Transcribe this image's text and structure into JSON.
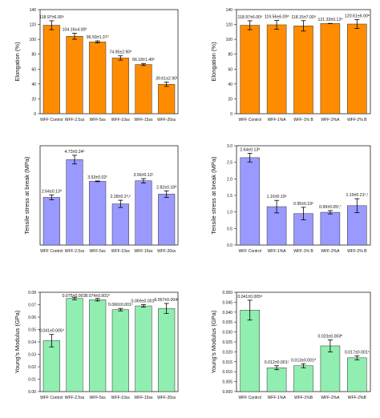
{
  "chart_data": [
    {
      "id": "elong-speed",
      "type": "bar",
      "color": "#FF8C00",
      "categories": [
        "WFF Control",
        "WFF-2.5ss",
        "WFF-5ss",
        "WFF-10ss",
        "WFF-15ss",
        "WFF-20ss"
      ],
      "values": [
        118.97,
        104.16,
        96.59,
        74.95,
        66.18,
        39.61
      ],
      "errors": [
        6.0,
        4.0,
        1.37,
        2.9,
        1.4,
        2.9
      ],
      "labels": [
        "118.97±6.00ᵃ",
        "104.16±4.00ᵇ",
        "96.59±1.37ᶜ",
        "74.95±2.90ᵈ",
        "66.18±1.40ᵉ",
        "39.61±2.90ᶠ"
      ],
      "ylabel": "Elongation (%)",
      "ylim": [
        0,
        140
      ],
      "yticks": [
        0,
        20,
        40,
        60,
        80,
        100,
        120,
        140
      ],
      "ytick_labels": [
        "0",
        "20",
        "40",
        "60",
        "80",
        "100",
        "120",
        "140"
      ]
    },
    {
      "id": "elong-amp",
      "type": "bar",
      "color": "#FF8C00",
      "categories": [
        "WFF Control",
        "WFF-1%A",
        "WFF-1% B",
        "WFF-2%A",
        "WFF-2% B"
      ],
      "values": [
        118.97,
        119.56,
        118.15,
        121.33,
        120.61
      ],
      "errors": [
        6.0,
        6.0,
        7.0,
        0.12,
        6.0
      ],
      "labels": [
        "118.97±6.00ᵃ",
        "119.56±6.00ᵃ",
        "118.15±7.00ᵃ",
        "121.33±0.12ᵃ",
        "120.61±6.00ᵃ"
      ],
      "ylabel": "Elongation (%)",
      "ylim": [
        0,
        140
      ],
      "yticks": [
        0,
        20,
        40,
        60,
        80,
        100,
        120,
        140
      ],
      "ytick_labels": [
        "0",
        "20",
        "40",
        "60",
        "80",
        "100",
        "120",
        "140"
      ]
    },
    {
      "id": "tensile-speed",
      "type": "bar",
      "color": "#9999FF",
      "categories": [
        "WFF Control",
        "WFF-2.5ss",
        "WFF-5ss",
        "WFF-10ss",
        "WFF-15ss",
        "WFF-20ss"
      ],
      "values": [
        2.64,
        4.73,
        3.53,
        2.28,
        3.56,
        2.82
      ],
      "errors": [
        0.13,
        0.24,
        0.02,
        0.2,
        0.12,
        0.18
      ],
      "labels": [
        "2.64±0.13ᵈ",
        "4.73±0.24ᵇ",
        "3.53±0.02ᶜ",
        "2.28±0.2ᵈ,ᵉ",
        "3.56±0.12ᶜ",
        "2.82±0.18ᵈ"
      ],
      "ylabel": "Tensile stress at break (MPa)",
      "ylim": [
        0,
        5.5
      ],
      "yticks": [],
      "ytick_labels": []
    },
    {
      "id": "tensile-amp",
      "type": "bar",
      "color": "#9999FF",
      "categories": [
        "WFF Control",
        "WFF-1%A",
        "WFF-1% B",
        "WFF-2%A",
        "WFF-2% B"
      ],
      "values": [
        2.64,
        1.16,
        0.95,
        0.99,
        1.19
      ],
      "errors": [
        0.13,
        0.19,
        0.19,
        0.05,
        0.21
      ],
      "labels": [
        "2.64±0.13ᵈ",
        "1.16±0.19ᵉ",
        "0.95±0.19ᵉ",
        "0.99±0.05ᵉ,ᶠ",
        "1.19±0.21ᵉ,ᶠ"
      ],
      "ylabel": "Tensile stress at break (MPa)",
      "ylim": [
        0,
        3.0
      ],
      "yticks": [
        0,
        0.5,
        1.0,
        1.5,
        2.0,
        2.5,
        3.0
      ],
      "ytick_labels": [
        "0.0",
        "0.5",
        "1.0",
        "1.5",
        "2.0",
        "2.5",
        "3.0"
      ]
    },
    {
      "id": "young-speed",
      "type": "bar",
      "color": "#90EEB0",
      "categories": [
        "WFF Control",
        "WFF-2.5ss",
        "WFF-5ss",
        "WFF-10ss",
        "WFF-15ss",
        "WFF-20ss"
      ],
      "values": [
        0.041,
        0.075,
        0.074,
        0.066,
        0.069,
        0.067
      ],
      "errors": [
        0.005,
        0.001,
        0.001,
        0.001,
        0.001,
        0.004
      ],
      "labels": [
        "0.041±0.005ᵈ",
        "0.075±0.001ᵇ",
        "0.074±0.001ᵇ",
        "0.066±0.001ᶜ",
        "0.069±0.001ᶜ",
        "0.067±0.004ᶜ"
      ],
      "ylabel": "Young's Modulus (GPa)",
      "ylim": [
        0,
        0.08
      ],
      "yticks": [
        0,
        0.01,
        0.02,
        0.03,
        0.04,
        0.05,
        0.06,
        0.07,
        0.08
      ],
      "ytick_labels": [
        "0.00",
        "0.01",
        "0.02",
        "0.03",
        "0.04",
        "0.05",
        "0.06",
        "0.07",
        "0.08"
      ]
    },
    {
      "id": "young-amp",
      "type": "bar",
      "color": "#90EEB0",
      "categories": [
        "WFF Control",
        "WFF-1%A",
        "WFF-1%B",
        "WFF-2%A",
        "WFF-2%B"
      ],
      "values": [
        0.041,
        0.012,
        0.013,
        0.023,
        0.017
      ],
      "errors": [
        0.005,
        0.001,
        0.001,
        0.003,
        0.001
      ],
      "labels": [
        "0.041±0.005ᵃ",
        "0.012±0.001ᶜ",
        "0.013±0.001ᵈ",
        "0.023±0.003ᵇ",
        "0.017±0.001ᶜ"
      ],
      "ylabel": "Young's Modulus (GPa)",
      "ylim": [
        0,
        0.05
      ],
      "yticks": [
        0,
        0.005,
        0.01,
        0.015,
        0.02,
        0.025,
        0.03,
        0.035,
        0.04,
        0.045,
        0.05
      ],
      "ytick_labels": [
        "0.000",
        "0.005",
        "0.010",
        "0.015",
        "0.020",
        "0.025",
        "0.030",
        "0.035",
        "0.040",
        "0.045",
        "0.050"
      ]
    }
  ]
}
